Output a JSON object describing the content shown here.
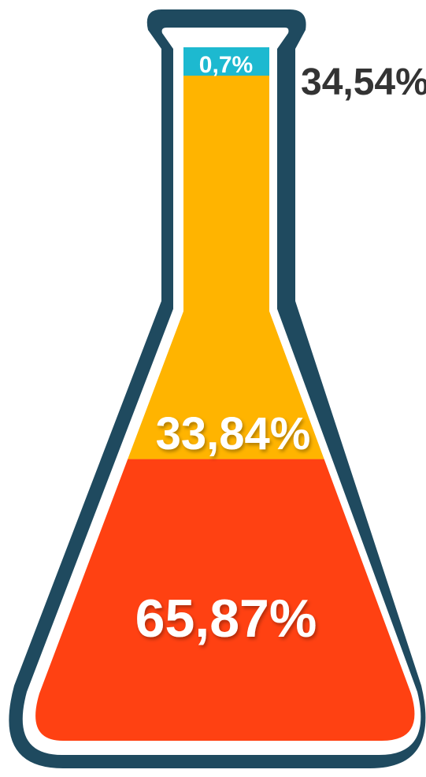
{
  "chart_data": {
    "type": "area",
    "title": "",
    "segments": [
      {
        "label": "65,87%",
        "value": 65.87,
        "color": "#ff4112"
      },
      {
        "label": "33,84%",
        "value": 33.84,
        "color": "#ffb400"
      },
      {
        "label": "0,7%",
        "value": 0.7,
        "color": "#1db9d0"
      }
    ],
    "outer_label": "34,54%",
    "flask_outline_color": "#1f4a5f"
  }
}
